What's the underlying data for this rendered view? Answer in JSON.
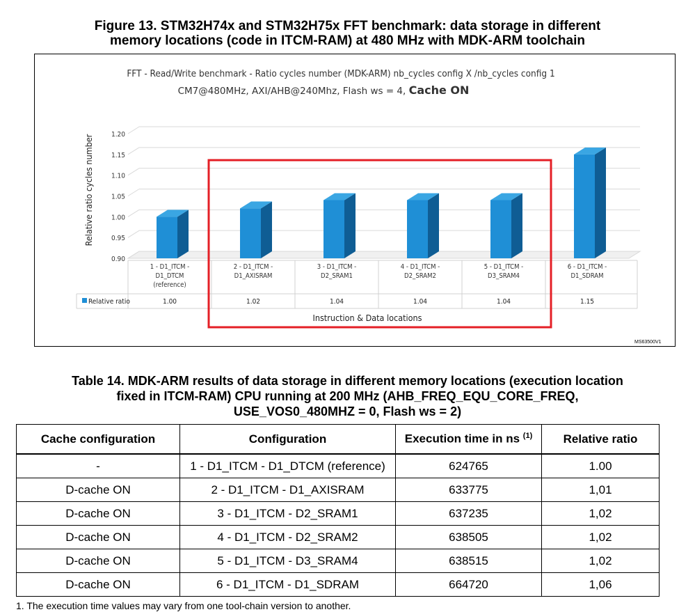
{
  "figure_caption": {
    "line1": "Figure 13. STM32H74x and STM32H75x FFT benchmark: data storage in different",
    "line2": "memory locations (code in ITCM-RAM) at 480 MHz with MDK-ARM toolchain"
  },
  "ms_tag": "MS63500V1",
  "colors": {
    "bar_front": "#1f8fd6",
    "bar_side": "#0f5d94",
    "bar_top": "#3aa6e3",
    "highlight_box": "#e41f26"
  },
  "chart_data": {
    "type": "bar",
    "title_line1": "FFT - Read/Write benchmark - Ratio cycles number (MDK-ARM)  nb_cycles config X /nb_cycles config 1",
    "title_line2_prefix": "CM7@480MHz, AXI/AHB@240Mhz, Flash ws = 4, ",
    "title_line2_bold": "Cache ON",
    "ylabel": "Relative ratio cycles number",
    "xlabel": "Instruction & Data locations",
    "ylim": [
      0.9,
      1.2
    ],
    "yticks": [
      "1.20",
      "1.15",
      "1.10",
      "1.05",
      "1.00",
      "0.95",
      "0.90"
    ],
    "categories": [
      [
        "1 - D1_ITCM -",
        "D1_DTCM",
        "(reference)"
      ],
      [
        "2 - D1_ITCM -",
        "D1_AXISRAM"
      ],
      [
        "3 - D1_ITCM -",
        "D2_SRAM1"
      ],
      [
        "4 - D1_ITCM -",
        "D2_SRAM2"
      ],
      [
        "5 - D1_ITCM -",
        "D3_SRAM4"
      ],
      [
        "6 - D1_ITCM -",
        "D1_SDRAM"
      ]
    ],
    "series": [
      {
        "name": "Relative ratio",
        "values": [
          1.0,
          1.02,
          1.04,
          1.04,
          1.04,
          1.15
        ],
        "value_labels": [
          "1.00",
          "1.02",
          "1.04",
          "1.04",
          "1.04",
          "1.15"
        ]
      }
    ],
    "highlighted_categories": [
      2,
      3,
      4,
      5
    ],
    "legend_placement": "data-table-left",
    "grid": true
  },
  "table_caption": {
    "line1": "Table 14. MDK-ARM results of data storage in different memory locations (execution location",
    "line2": "fixed in ITCM-RAM) CPU running at 200 MHz (AHB_FREQ_EQU_CORE_FREQ,",
    "line3": "USE_VOS0_480MHZ = 0, Flash ws = 2)"
  },
  "table": {
    "headers": [
      "Cache configuration",
      "Configuration",
      "Execution time in ns",
      "Relative ratio"
    ],
    "header_footnote_ref": "(1)",
    "rows": [
      [
        "-",
        "1 - D1_ITCM - D1_DTCM (reference)",
        "624765",
        "1.00"
      ],
      [
        "D-cache ON",
        "2 - D1_ITCM - D1_AXISRAM",
        "633775",
        "1,01"
      ],
      [
        "D-cache ON",
        "3 - D1_ITCM - D2_SRAM1",
        "637235",
        "1,02"
      ],
      [
        "D-cache ON",
        "4 - D1_ITCM - D2_SRAM2",
        "638505",
        "1,02"
      ],
      [
        "D-cache ON",
        "5 - D1_ITCM - D3_SRAM4",
        "638515",
        "1,02"
      ],
      [
        "D-cache ON",
        "6 - D1_ITCM - D1_SDRAM",
        "664720",
        "1,06"
      ]
    ]
  },
  "footnote": "1.   The execution time values may vary from one tool-chain version to another."
}
